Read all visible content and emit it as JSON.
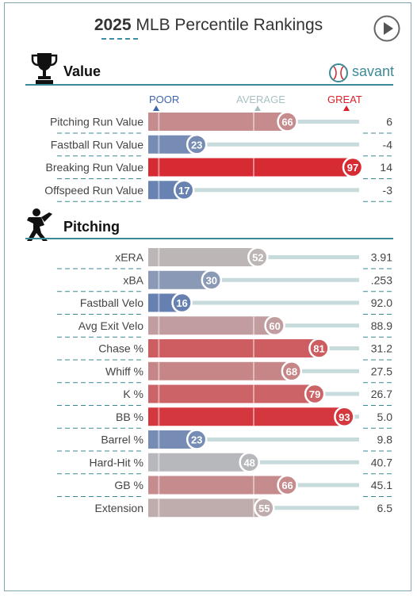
{
  "header": {
    "year": "2025",
    "title": "MLB Percentile Rankings"
  },
  "brand": {
    "logo_text": "savant"
  },
  "scale": {
    "poor": "POOR",
    "average": "AVERAGE",
    "great": "GREAT"
  },
  "colors": {
    "accent": "#3d8a96",
    "poor": "#3d64ad",
    "great": "#d8222a",
    "average": "#bcbcbc",
    "track": "#c7dadc"
  },
  "sections": [
    {
      "label": "Value",
      "icon": "trophy-icon"
    },
    {
      "label": "Pitching",
      "icon": "pitcher-icon"
    }
  ],
  "chart_data": [
    {
      "type": "bar",
      "section": "Value",
      "categories": [
        "Pitching Run Value",
        "Fastball Run Value",
        "Breaking Run Value",
        "Offspeed Run Value"
      ],
      "percentiles": [
        66,
        23,
        97,
        17
      ],
      "stat_values": [
        "6",
        "-4",
        "14",
        "-3"
      ],
      "xlim": [
        0,
        100
      ]
    },
    {
      "type": "bar",
      "section": "Pitching",
      "categories": [
        "xERA",
        "xBA",
        "Fastball Velo",
        "Avg Exit Velo",
        "Chase %",
        "Whiff %",
        "K %",
        "BB %",
        "Barrel %",
        "Hard-Hit %",
        "GB %",
        "Extension"
      ],
      "percentiles": [
        52,
        30,
        16,
        60,
        81,
        68,
        79,
        93,
        23,
        48,
        66,
        55
      ],
      "stat_values": [
        "3.91",
        ".253",
        "92.0",
        "88.9",
        "31.2",
        "27.5",
        "26.7",
        "5.0",
        "9.8",
        "40.7",
        "45.1",
        "6.5"
      ],
      "xlim": [
        0,
        100
      ]
    }
  ]
}
